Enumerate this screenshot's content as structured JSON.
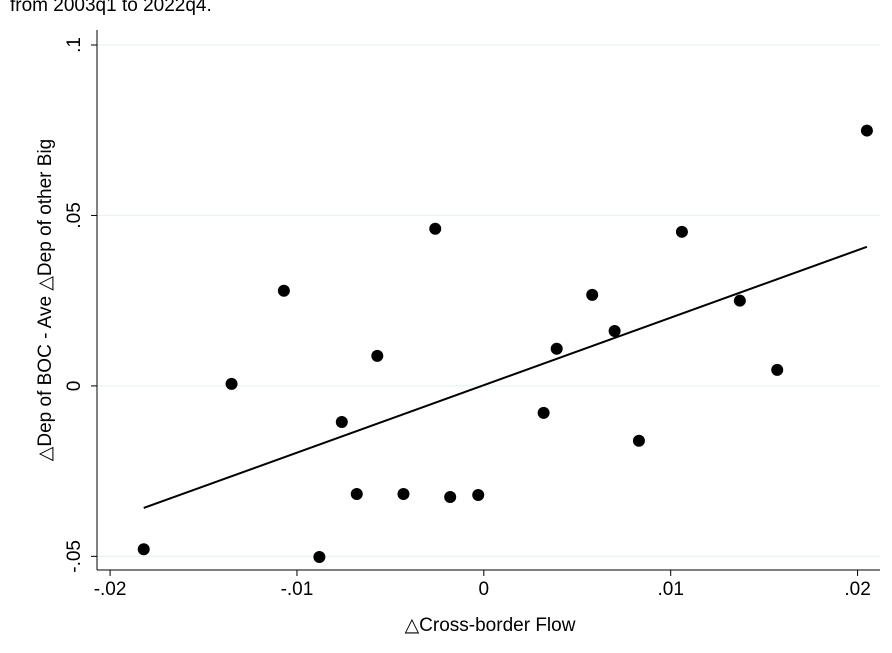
{
  "chart_data": {
    "type": "scatter",
    "subtitle": "from 2003q1 to 2022q4.",
    "x_label": "△Cross-border Flow",
    "y_label": "△Dep of BOC - Ave △Dep of other Big",
    "color": "#000000",
    "grid": true,
    "xlim": [
      -0.0207,
      0.0212
    ],
    "ylim": [
      -0.054,
      0.1044
    ],
    "xticks": [
      {
        "value": -0.02,
        "label": "-.02"
      },
      {
        "value": -0.01,
        "label": "-.01"
      },
      0,
      {
        "value": 0.01,
        "label": ".01"
      },
      {
        "value": 0.02,
        "label": ".02"
      }
    ],
    "yticks": [
      {
        "value": -0.05,
        "label": "-.05"
      },
      0,
      {
        "value": 0.05,
        "label": ".05"
      },
      {
        "value": 0.1,
        "label": ".1"
      }
    ],
    "x": [
      -0.0182,
      -0.0135,
      -0.0107,
      -0.0076,
      -0.0088,
      -0.0068,
      -0.0057,
      -0.0043,
      -0.0026,
      -0.0018,
      -0.0003,
      0.0032,
      0.0039,
      0.0058,
      0.007,
      0.0083,
      0.0106,
      0.0137,
      0.0157,
      0.0205
    ],
    "values": [
      -0.0479,
      0.0006,
      0.0279,
      -0.0106,
      -0.0502,
      -0.0317,
      0.0088,
      -0.0317,
      0.0461,
      -0.0326,
      -0.032,
      -0.0079,
      0.0109,
      0.0267,
      0.0161,
      -0.0161,
      0.0452,
      0.025,
      0.0047,
      0.0749
    ],
    "fit": {
      "x": [
        -0.0182,
        0.0205
      ],
      "values": [
        -0.0358,
        0.0408
      ]
    }
  }
}
